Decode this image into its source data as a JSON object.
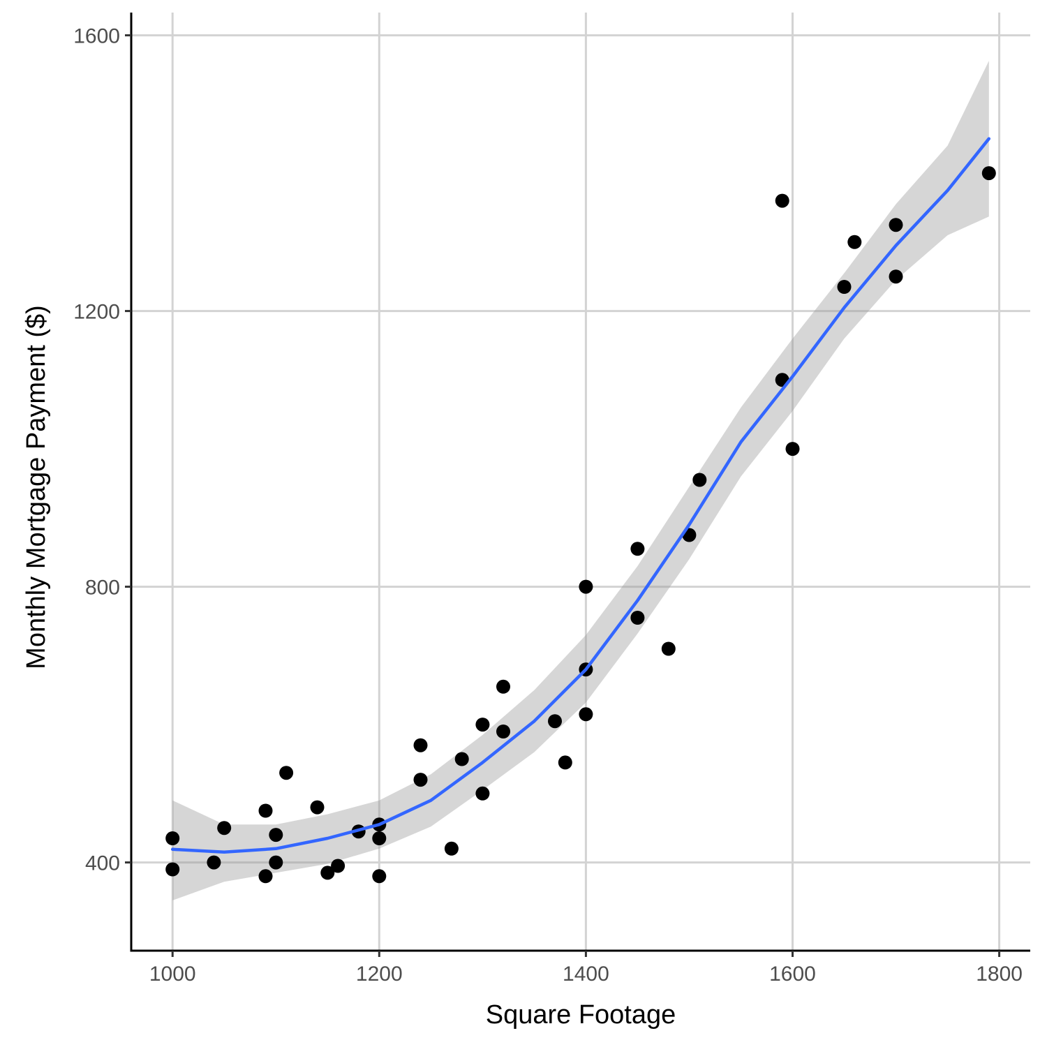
{
  "chart_data": {
    "type": "scatter",
    "xlabel": "Square Footage",
    "ylabel": "Monthly Mortgage Payment ($)",
    "xlim": [
      960,
      1830
    ],
    "ylim": [
      272,
      1633
    ],
    "x_ticks": [
      1000,
      1200,
      1400,
      1600,
      1800
    ],
    "y_ticks": [
      400,
      800,
      1200,
      1600
    ],
    "grid": true,
    "colors": {
      "points": "#000000",
      "smooth_line": "#3366FF",
      "ribbon": "#999999",
      "grid": "#d3d3d3",
      "axis": "#000000"
    },
    "points": [
      {
        "x": 1000,
        "y": 435
      },
      {
        "x": 1000,
        "y": 390
      },
      {
        "x": 1040,
        "y": 400
      },
      {
        "x": 1050,
        "y": 450
      },
      {
        "x": 1090,
        "y": 475
      },
      {
        "x": 1090,
        "y": 380
      },
      {
        "x": 1100,
        "y": 440
      },
      {
        "x": 1100,
        "y": 400
      },
      {
        "x": 1110,
        "y": 530
      },
      {
        "x": 1140,
        "y": 480
      },
      {
        "x": 1150,
        "y": 385
      },
      {
        "x": 1160,
        "y": 395
      },
      {
        "x": 1180,
        "y": 445
      },
      {
        "x": 1200,
        "y": 455
      },
      {
        "x": 1200,
        "y": 435
      },
      {
        "x": 1200,
        "y": 380
      },
      {
        "x": 1240,
        "y": 570
      },
      {
        "x": 1240,
        "y": 520
      },
      {
        "x": 1270,
        "y": 420
      },
      {
        "x": 1280,
        "y": 550
      },
      {
        "x": 1300,
        "y": 600
      },
      {
        "x": 1300,
        "y": 500
      },
      {
        "x": 1320,
        "y": 655
      },
      {
        "x": 1320,
        "y": 590
      },
      {
        "x": 1370,
        "y": 605
      },
      {
        "x": 1380,
        "y": 545
      },
      {
        "x": 1400,
        "y": 800
      },
      {
        "x": 1400,
        "y": 680
      },
      {
        "x": 1400,
        "y": 615
      },
      {
        "x": 1450,
        "y": 855
      },
      {
        "x": 1450,
        "y": 755
      },
      {
        "x": 1480,
        "y": 710
      },
      {
        "x": 1500,
        "y": 875
      },
      {
        "x": 1510,
        "y": 955
      },
      {
        "x": 1590,
        "y": 1360
      },
      {
        "x": 1590,
        "y": 1100
      },
      {
        "x": 1600,
        "y": 1000
      },
      {
        "x": 1650,
        "y": 1235
      },
      {
        "x": 1660,
        "y": 1300
      },
      {
        "x": 1700,
        "y": 1325
      },
      {
        "x": 1700,
        "y": 1250
      },
      {
        "x": 1790,
        "y": 1400
      }
    ],
    "smooth": {
      "method": "loess",
      "x": [
        1000,
        1050,
        1100,
        1150,
        1200,
        1250,
        1300,
        1350,
        1400,
        1450,
        1500,
        1550,
        1600,
        1650,
        1700,
        1750,
        1790
      ],
      "y": [
        419,
        415,
        420,
        435,
        455,
        490,
        545,
        605,
        680,
        780,
        890,
        1010,
        1105,
        1205,
        1295,
        1375,
        1450
      ],
      "lower": [
        345,
        372,
        385,
        398,
        420,
        452,
        505,
        560,
        632,
        732,
        840,
        960,
        1055,
        1160,
        1245,
        1310,
        1337
      ],
      "upper": [
        490,
        455,
        455,
        470,
        490,
        528,
        585,
        650,
        730,
        830,
        945,
        1060,
        1160,
        1255,
        1355,
        1440,
        1563
      ]
    }
  }
}
